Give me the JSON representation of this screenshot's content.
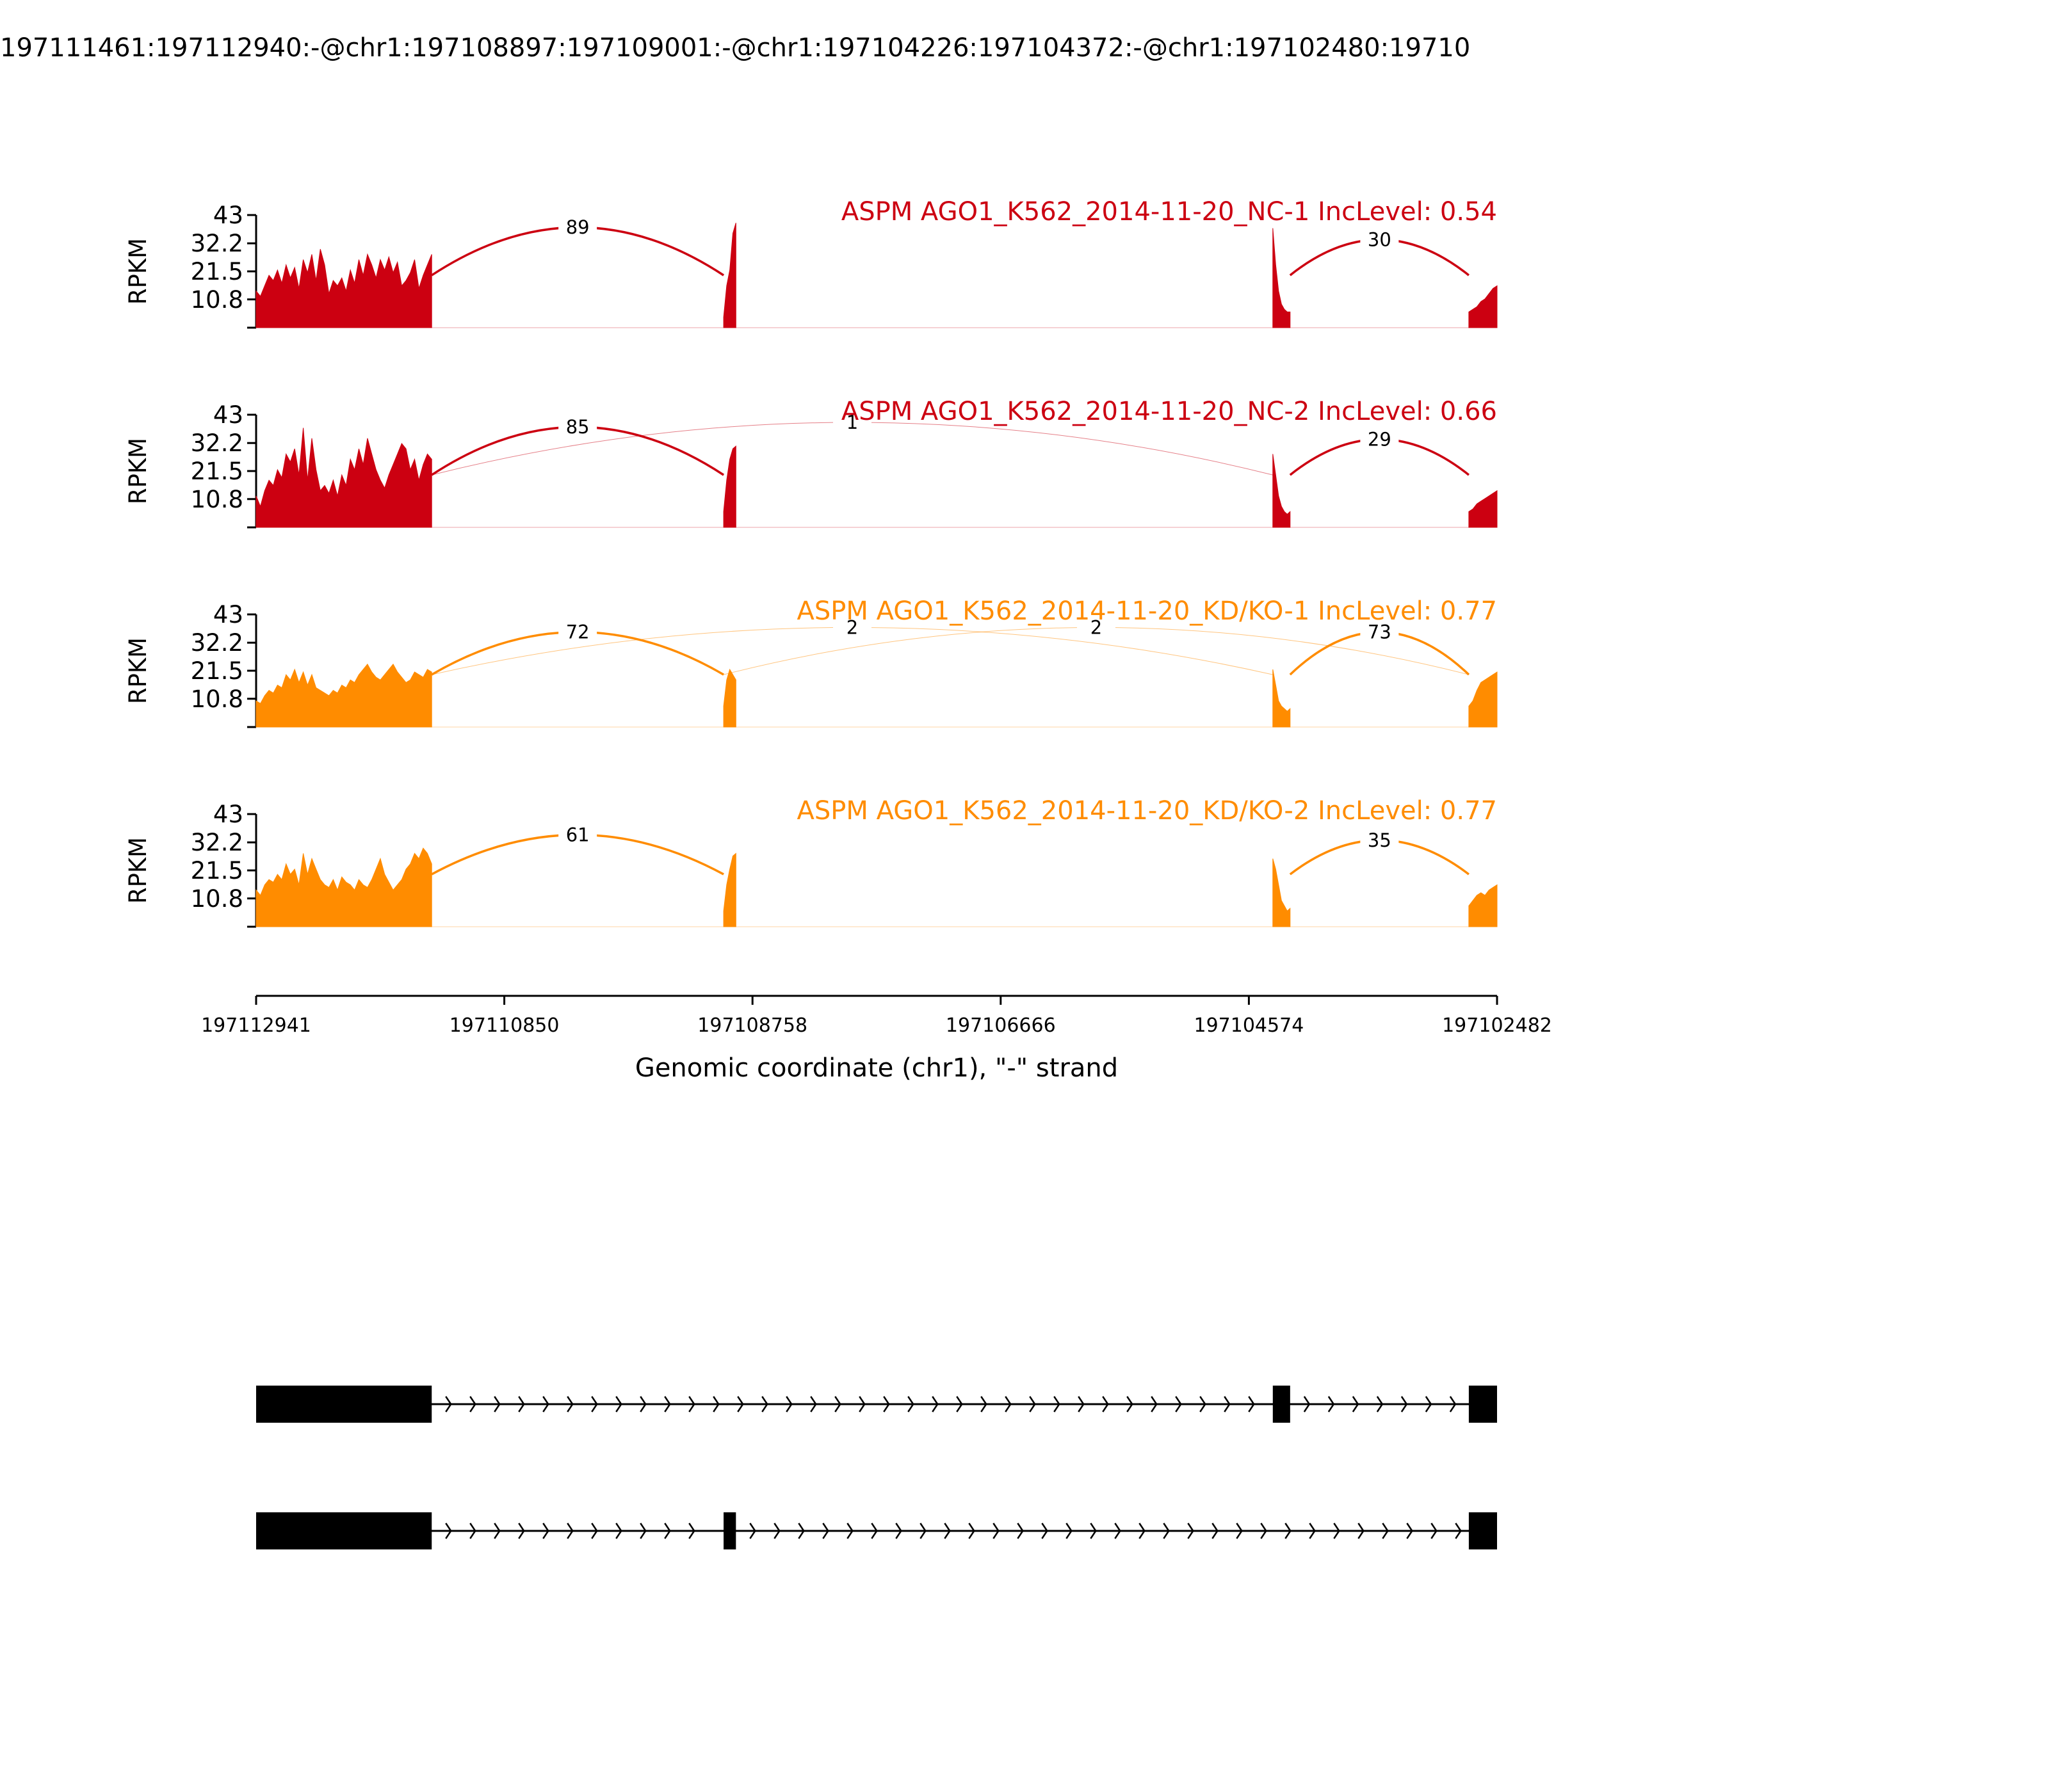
{
  "figure_title": "197111461:197112940:-@chr1:197108897:197109001:-@chr1:197104226:197104372:-@chr1:197102480:19710",
  "chart_data": {
    "type": "area",
    "x_axis": {
      "title": "Genomic coordinate (chr1), \"-\" strand",
      "start": 197112941,
      "end": 197102482,
      "ticks": [
        "197112941",
        "197110850",
        "197108758",
        "197106666",
        "197104574",
        "197102482"
      ]
    },
    "y_axis": {
      "label": "RPKM",
      "range": [
        0,
        43
      ],
      "ticks": [
        "10.8",
        "21.5",
        "32.2",
        "43"
      ]
    },
    "exon_intervals": [
      {
        "start": 197112941,
        "end": 197111461
      },
      {
        "start": 197109001,
        "end": 197108897
      },
      {
        "start": 197104372,
        "end": 197104226
      },
      {
        "start": 197102720,
        "end": 197102482
      }
    ],
    "samples": [
      {
        "name": "ASPM AGO1_K562_2014-11-20_NC-1 IncLevel: 0.54",
        "color": "#cc0011",
        "profile": {
          "exon1": [
            14,
            12,
            16,
            20,
            18,
            22,
            17,
            24,
            19,
            23,
            15,
            26,
            21,
            28,
            18,
            30,
            24,
            13,
            18,
            16,
            19,
            14,
            22,
            17,
            26,
            20,
            28,
            24,
            19,
            26,
            22,
            27,
            21,
            25,
            16,
            18,
            21,
            26,
            15,
            20,
            24,
            28
          ],
          "exon2": [
            4,
            16,
            22,
            36,
            40
          ],
          "exon3": [
            38,
            24,
            14,
            9,
            7,
            6,
            6
          ],
          "exon4": [
            6,
            7,
            8,
            10,
            11,
            13,
            15,
            16
          ]
        },
        "junctions": [
          {
            "label": "89",
            "from": 197111461,
            "to": 197109001,
            "height": 34
          },
          {
            "label": "30",
            "from": 197104226,
            "to": 197102720,
            "height": 18
          }
        ]
      },
      {
        "name": "ASPM AGO1_K562_2014-11-20_NC-2 IncLevel: 0.66",
        "color": "#cc0011",
        "profile": {
          "exon1": [
            12,
            8,
            14,
            18,
            16,
            22,
            19,
            28,
            25,
            30,
            20,
            38,
            18,
            34,
            22,
            14,
            16,
            13,
            18,
            12,
            20,
            16,
            26,
            22,
            30,
            24,
            34,
            28,
            22,
            18,
            15,
            20,
            24,
            28,
            32,
            30,
            22,
            26,
            18,
            24,
            28,
            26
          ],
          "exon2": [
            6,
            18,
            26,
            30,
            31
          ],
          "exon3": [
            28,
            20,
            12,
            8,
            6,
            5,
            6
          ],
          "exon4": [
            6,
            7,
            9,
            10,
            11,
            12,
            13,
            14
          ]
        },
        "junctions": [
          {
            "label": "85",
            "from": 197111461,
            "to": 197109001,
            "height": 34
          },
          {
            "label": "1",
            "from": 197111461,
            "to": 197104372,
            "height": 40,
            "minor": true
          },
          {
            "label": "29",
            "from": 197104226,
            "to": 197102720,
            "height": 18
          }
        ]
      },
      {
        "name": "ASPM AGO1_K562_2014-11-20_KD/KO-1 IncLevel: 0.77",
        "color": "#ff8c00",
        "profile": {
          "exon1": [
            10,
            9,
            12,
            14,
            13,
            16,
            15,
            20,
            18,
            22,
            17,
            21,
            16,
            20,
            15,
            14,
            13,
            12,
            14,
            13,
            16,
            15,
            18,
            17,
            20,
            22,
            24,
            21,
            19,
            18,
            20,
            22,
            24,
            21,
            19,
            17,
            18,
            21,
            20,
            19,
            22,
            21
          ],
          "exon2": [
            8,
            18,
            22,
            20,
            18
          ],
          "exon3": [
            22,
            16,
            10,
            8,
            7,
            6,
            7
          ],
          "exon4": [
            8,
            10,
            14,
            17,
            18,
            19,
            20,
            21
          ]
        },
        "junctions": [
          {
            "label": "72",
            "from": 197111461,
            "to": 197109001,
            "height": 27
          },
          {
            "label": "2",
            "from": 197111461,
            "to": 197104372,
            "height": 33,
            "minor": true
          },
          {
            "label": "2",
            "from": 197109001,
            "to": 197102720,
            "height": 33,
            "minor": true
          },
          {
            "label": "73",
            "from": 197104226,
            "to": 197102720,
            "height": 27
          }
        ]
      },
      {
        "name": "ASPM AGO1_K562_2014-11-20_KD/KO-2 IncLevel: 0.77",
        "color": "#ff8c00",
        "profile": {
          "exon1": [
            14,
            12,
            16,
            18,
            17,
            20,
            18,
            24,
            20,
            22,
            16,
            28,
            20,
            26,
            22,
            18,
            16,
            15,
            18,
            14,
            19,
            17,
            16,
            14,
            18,
            16,
            15,
            18,
            22,
            26,
            20,
            17,
            14,
            16,
            18,
            22,
            24,
            28,
            26,
            30,
            28,
            24
          ],
          "exon2": [
            6,
            16,
            22,
            27,
            28
          ],
          "exon3": [
            26,
            22,
            16,
            10,
            8,
            6,
            7
          ],
          "exon4": [
            8,
            10,
            12,
            13,
            12,
            14,
            15,
            16
          ]
        },
        "junctions": [
          {
            "label": "61",
            "from": 197111461,
            "to": 197109001,
            "height": 23
          },
          {
            "label": "35",
            "from": 197104226,
            "to": 197102720,
            "height": 16
          }
        ]
      }
    ],
    "isoforms": [
      {
        "exons": [
          {
            "start": 197112941,
            "end": 197111461
          },
          {
            "start": 197104372,
            "end": 197104226
          },
          {
            "start": 197102720,
            "end": 197102482
          }
        ]
      },
      {
        "exons": [
          {
            "start": 197112941,
            "end": 197111461
          },
          {
            "start": 197109001,
            "end": 197108897
          },
          {
            "start": 197102720,
            "end": 197102482
          }
        ]
      }
    ]
  }
}
